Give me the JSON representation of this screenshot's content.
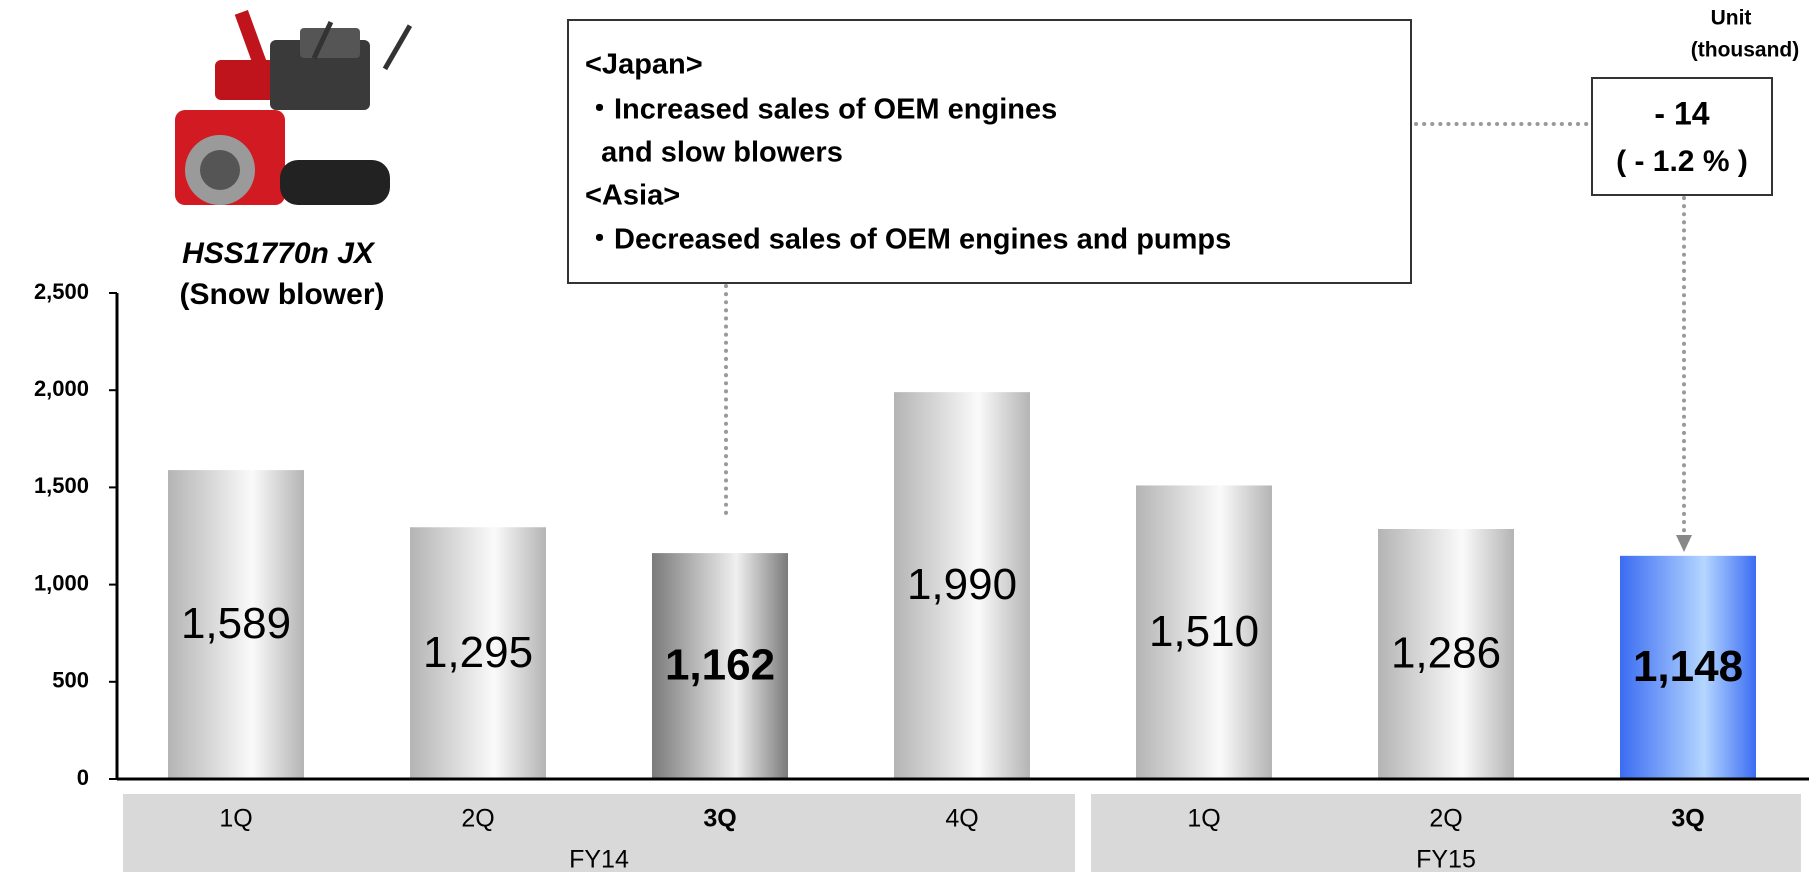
{
  "chart_data": {
    "type": "bar",
    "categories": [
      "1Q",
      "2Q",
      "3Q",
      "4Q",
      "1Q",
      "2Q",
      "3Q"
    ],
    "groups": [
      {
        "name": "FY14",
        "count": 4
      },
      {
        "name": "FY15",
        "count": 3
      }
    ],
    "values": [
      1589,
      1295,
      1162,
      1990,
      1510,
      1286,
      1148
    ],
    "value_labels": [
      "1,589",
      "1,295",
      "1,162",
      "1,990",
      "1,510",
      "1,286",
      "1,148"
    ],
    "colors": [
      "#b4b4b4",
      "#b4b4b4",
      "#7a7a7a",
      "#b4b4b4",
      "#b4b4b4",
      "#b4b4b4",
      "#3b6cf2"
    ],
    "emphasis": [
      false,
      false,
      true,
      false,
      false,
      false,
      true
    ],
    "ylim": [
      0,
      2500
    ],
    "yticks": [
      0,
      500,
      {
        "value": 1000,
        "label": "1,000"
      },
      {
        "value": 1500,
        "label": "1,500"
      },
      {
        "value": 2000,
        "label": "2,000"
      },
      {
        "value": 2500,
        "label": "2,500"
      }
    ],
    "grid": false,
    "unit": [
      "Unit",
      "(thousand)"
    ],
    "image_caption": [
      "HSS1770n JX",
      "(Snow blower)"
    ],
    "annotation": [
      "<Japan>",
      "・Increased sales of OEM engines",
      "  and slow blowers",
      "<Asia>",
      "・Decreased sales of OEM engines and pumps"
    ],
    "change": {
      "value": -14,
      "label": "- 14"
    },
    "change_percent": {
      "value": -1.2,
      "label": "( - 1.2 % )"
    }
  }
}
